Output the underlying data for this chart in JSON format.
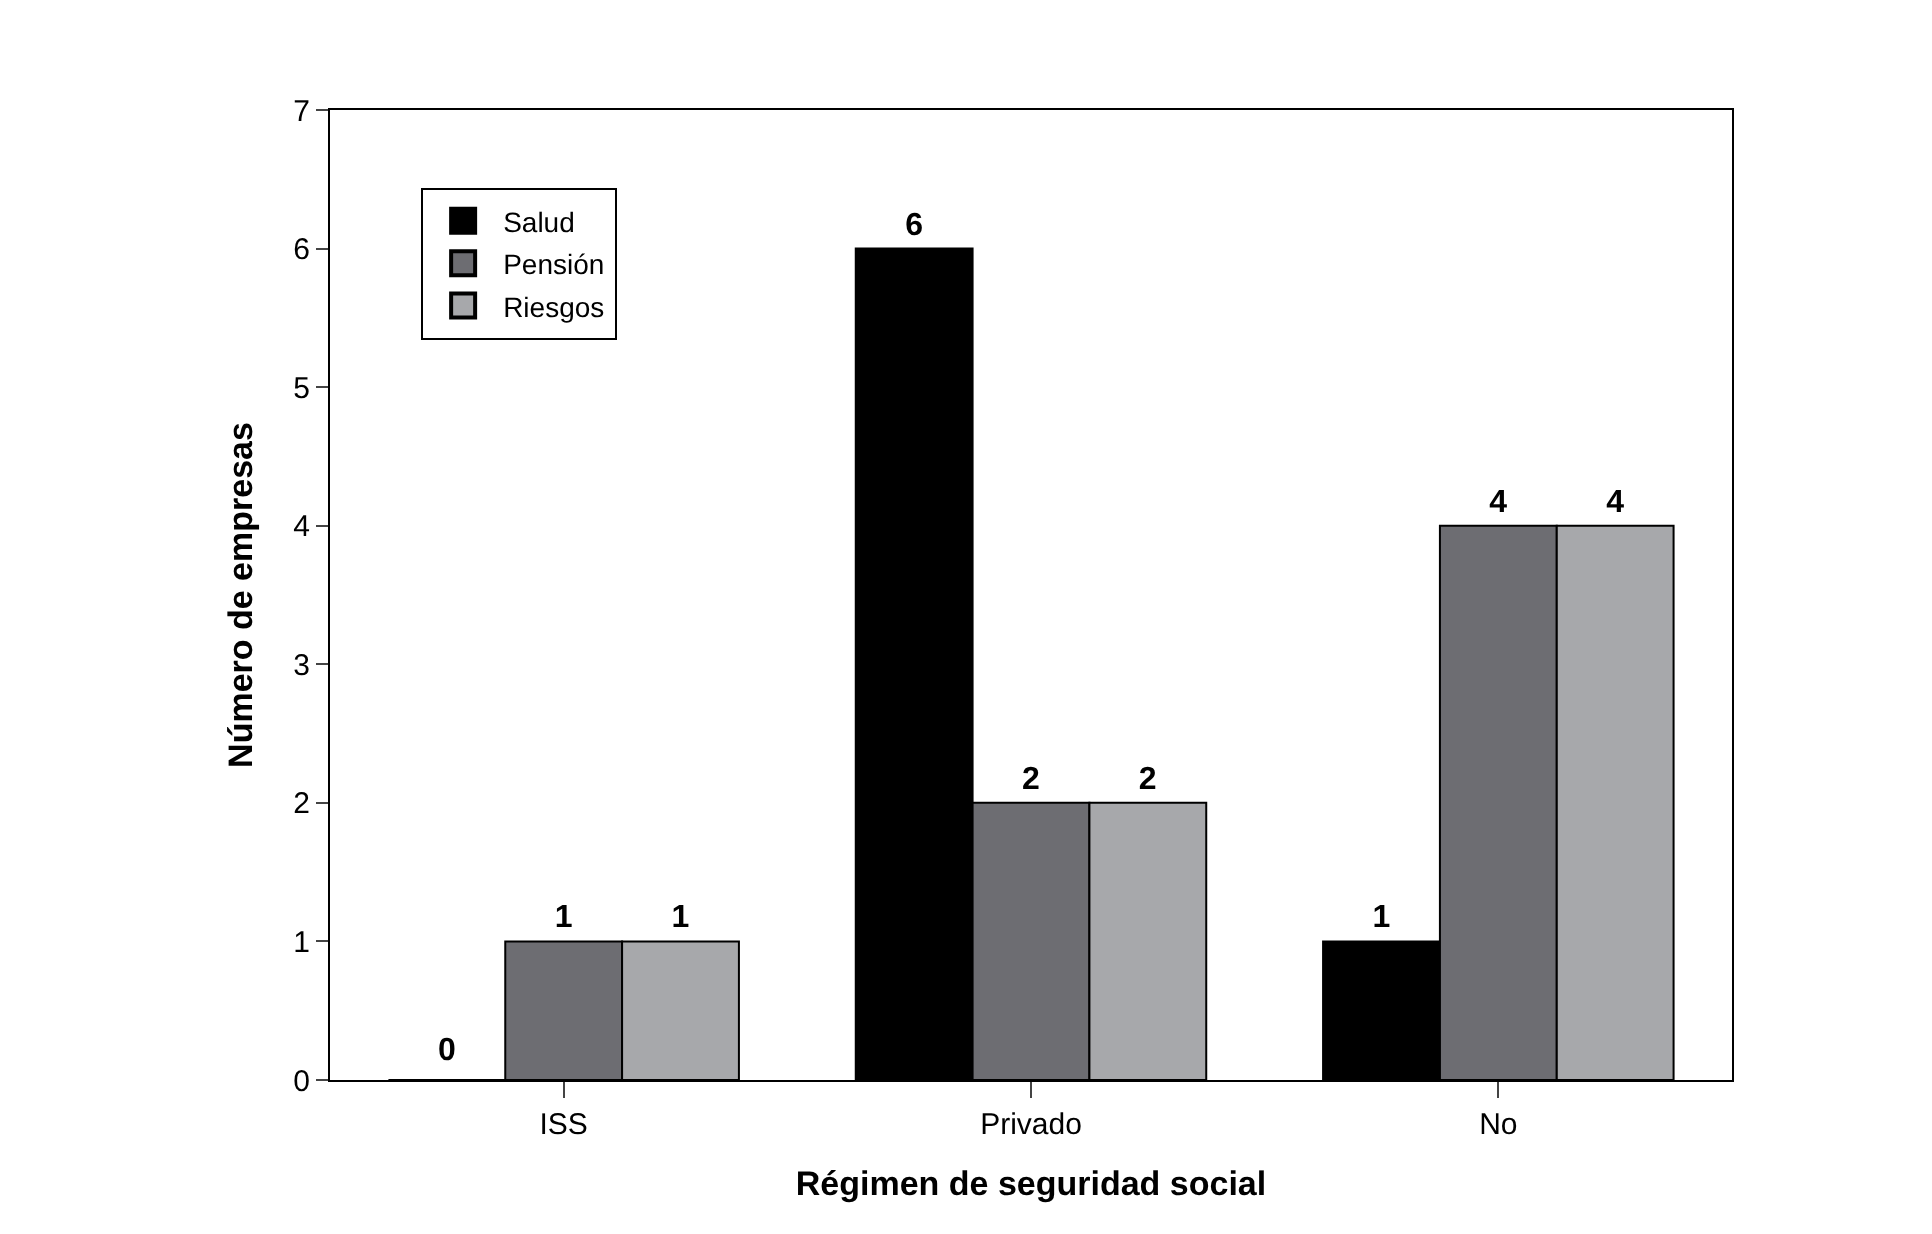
{
  "chart_data": {
    "type": "bar",
    "xlabel": "Régimen de seguridad social",
    "ylabel": "Número de empresas",
    "categories": [
      "ISS",
      "Privado",
      "No"
    ],
    "series": [
      {
        "name": "Salud",
        "color": "#000000",
        "values": [
          0,
          6,
          1
        ],
        "value_labels": [
          null,
          "6",
          "1"
        ]
      },
      {
        "name": "Pensión",
        "color": "#6d6d72",
        "values": [
          1,
          2,
          4
        ],
        "value_labels": [
          "1",
          "2",
          "4"
        ]
      },
      {
        "name": "Riesgos",
        "color": "#a7a8ab",
        "values": [
          1,
          2,
          4
        ],
        "value_labels": [
          "1",
          "2",
          "4"
        ]
      }
    ],
    "annotations": [
      "0"
    ],
    "ylim": [
      0,
      7
    ],
    "yticks": [
      0,
      1,
      2,
      3,
      4,
      5,
      6,
      7
    ],
    "grid": false,
    "legend": "top left"
  }
}
